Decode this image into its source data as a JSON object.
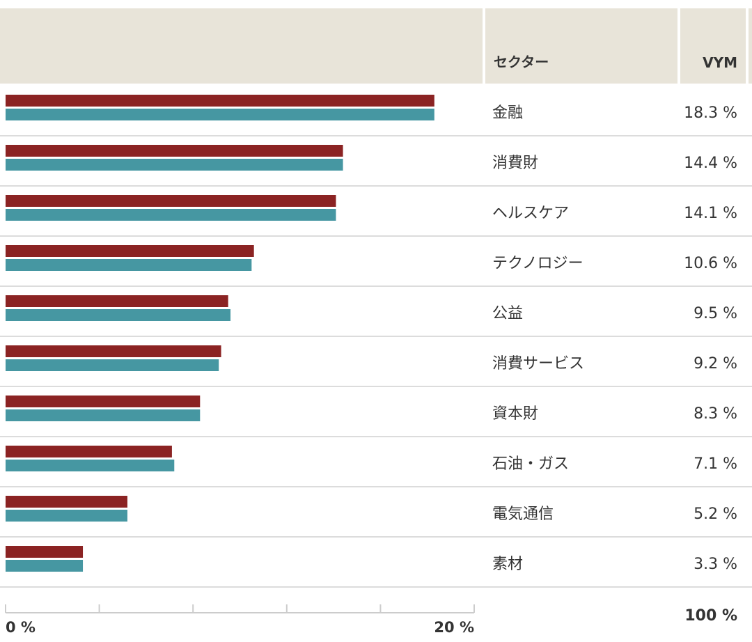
{
  "header": {
    "sector_label": "セクター",
    "fund_label": "VYM"
  },
  "total": "100 %",
  "colors": {
    "series_a": "#8b2323",
    "series_b": "#4697a2",
    "header_bg": "#e8e4d9"
  },
  "chart_data": {
    "type": "bar",
    "orientation": "horizontal",
    "categories": [
      "金融",
      "消費財",
      "ヘルスケア",
      "テクノロジー",
      "公益",
      "消費サービス",
      "資本財",
      "石油・ガス",
      "電気通信",
      "素材"
    ],
    "series": [
      {
        "values": [
          18.3,
          14.4,
          14.1,
          10.6,
          9.5,
          9.2,
          8.3,
          7.1,
          5.2,
          3.3
        ]
      },
      {
        "values": [
          18.3,
          14.4,
          14.1,
          10.5,
          9.6,
          9.1,
          8.3,
          7.2,
          5.2,
          3.3
        ]
      }
    ],
    "value_labels": [
      "18.3 %",
      "14.4 %",
      "14.1 %",
      "10.6 %",
      "9.5 %",
      "9.2 %",
      "8.3 %",
      "7.1 %",
      "5.2 %",
      "3.3 %"
    ],
    "xlim": [
      0,
      20
    ],
    "xtick_labels": [
      "0 %",
      "20 %"
    ],
    "xtick_count": 6
  }
}
